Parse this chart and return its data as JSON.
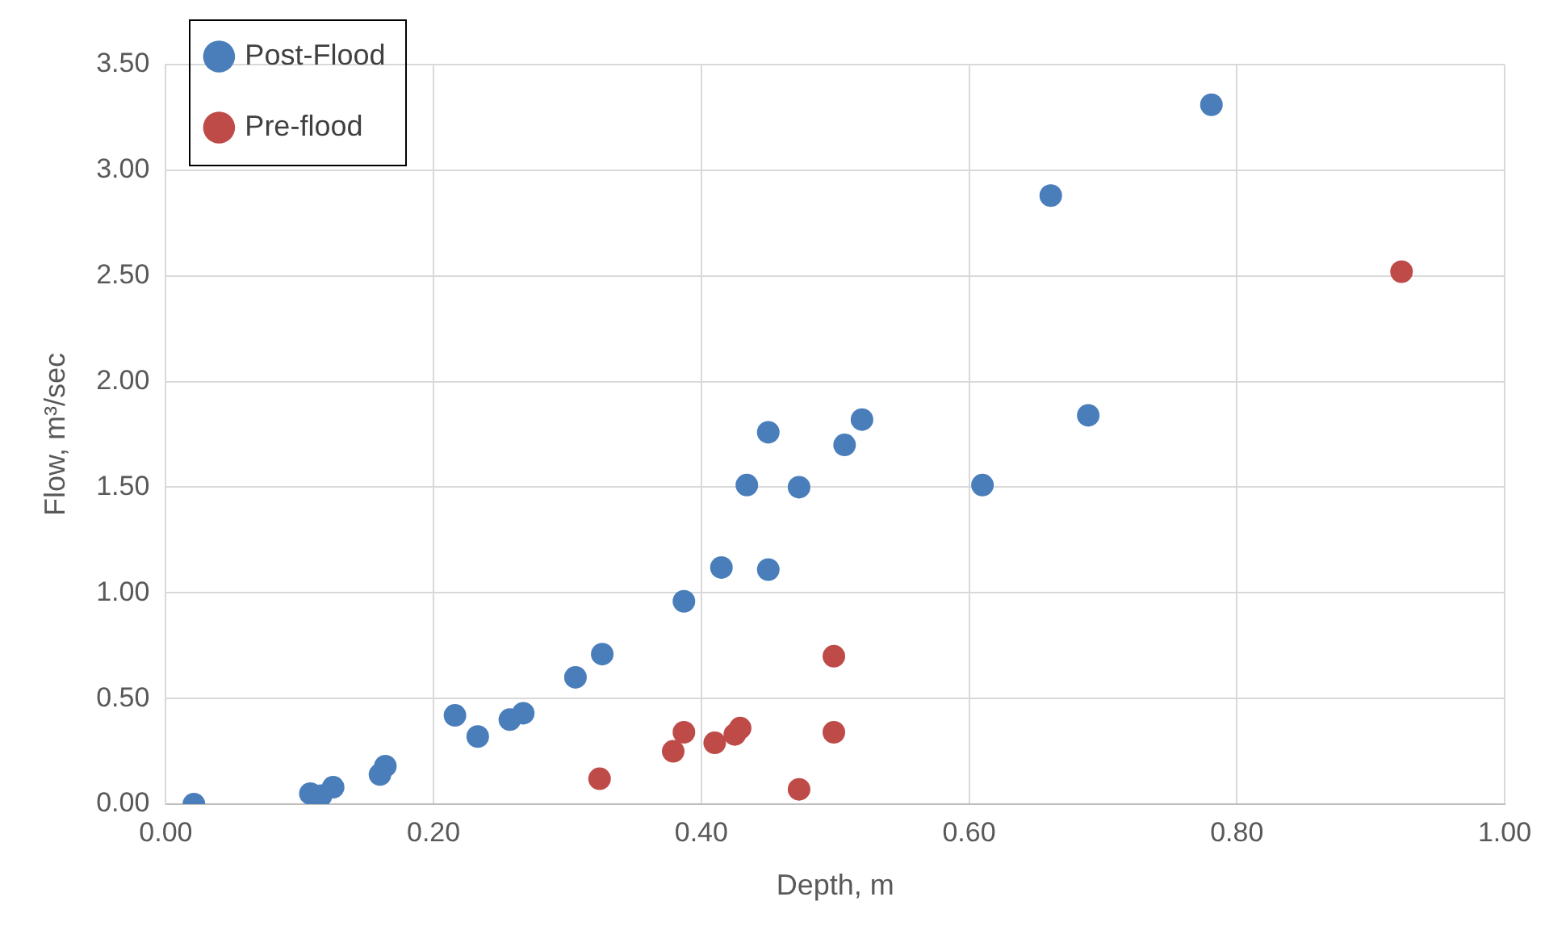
{
  "chart_data": {
    "type": "scatter",
    "xlabel": "Depth, m",
    "ylabel": "Flow, m³/sec",
    "xlim": [
      0,
      1
    ],
    "xticks": [
      {
        "value": 0,
        "label": "0.00"
      },
      {
        "value": 0.2,
        "label": "0.20"
      },
      {
        "value": 0.4,
        "label": "0.40"
      },
      {
        "value": 0.6,
        "label": "0.60"
      },
      {
        "value": 0.8,
        "label": "0.80"
      },
      {
        "value": 1,
        "label": "1.00"
      }
    ],
    "ylim": [
      0,
      3.5
    ],
    "yticks": [
      {
        "value": 0,
        "label": "0.00"
      },
      {
        "value": 0.5,
        "label": "0.50"
      },
      {
        "value": 1,
        "label": "1.00"
      },
      {
        "value": 1.5,
        "label": "1.50"
      },
      {
        "value": 2,
        "label": "2.00"
      },
      {
        "value": 2.5,
        "label": "2.50"
      },
      {
        "value": 3,
        "label": "3.00"
      },
      {
        "value": 3.5,
        "label": "3.50"
      }
    ],
    "grid": true,
    "legend": "top left",
    "marker": "circle",
    "series": [
      {
        "name": "Post-Flood",
        "color": "#4a7ebb",
        "x": [
          0.021,
          0.108,
          0.116,
          0.125,
          0.16,
          0.164,
          0.216,
          0.233,
          0.257,
          0.267,
          0.306,
          0.326,
          0.387,
          0.415,
          0.45,
          0.434,
          0.473,
          0.45,
          0.507,
          0.52,
          0.61,
          0.689,
          0.661,
          0.781
        ],
        "values": [
          0.0,
          0.05,
          0.04,
          0.08,
          0.14,
          0.18,
          0.42,
          0.32,
          0.4,
          0.43,
          0.6,
          0.71,
          0.96,
          1.12,
          1.11,
          1.51,
          1.5,
          1.76,
          1.7,
          1.82,
          1.51,
          1.84,
          2.88,
          3.31
        ]
      },
      {
        "name": "Pre-flood",
        "color": "#be4b48",
        "x": [
          0.324,
          0.379,
          0.387,
          0.41,
          0.412,
          0.425,
          0.429,
          0.473,
          0.499,
          0.499,
          0.923
        ],
        "values": [
          0.12,
          0.25,
          0.34,
          0.29,
          null,
          0.33,
          0.36,
          0.07,
          0.34,
          0.7,
          2.52
        ]
      }
    ]
  }
}
